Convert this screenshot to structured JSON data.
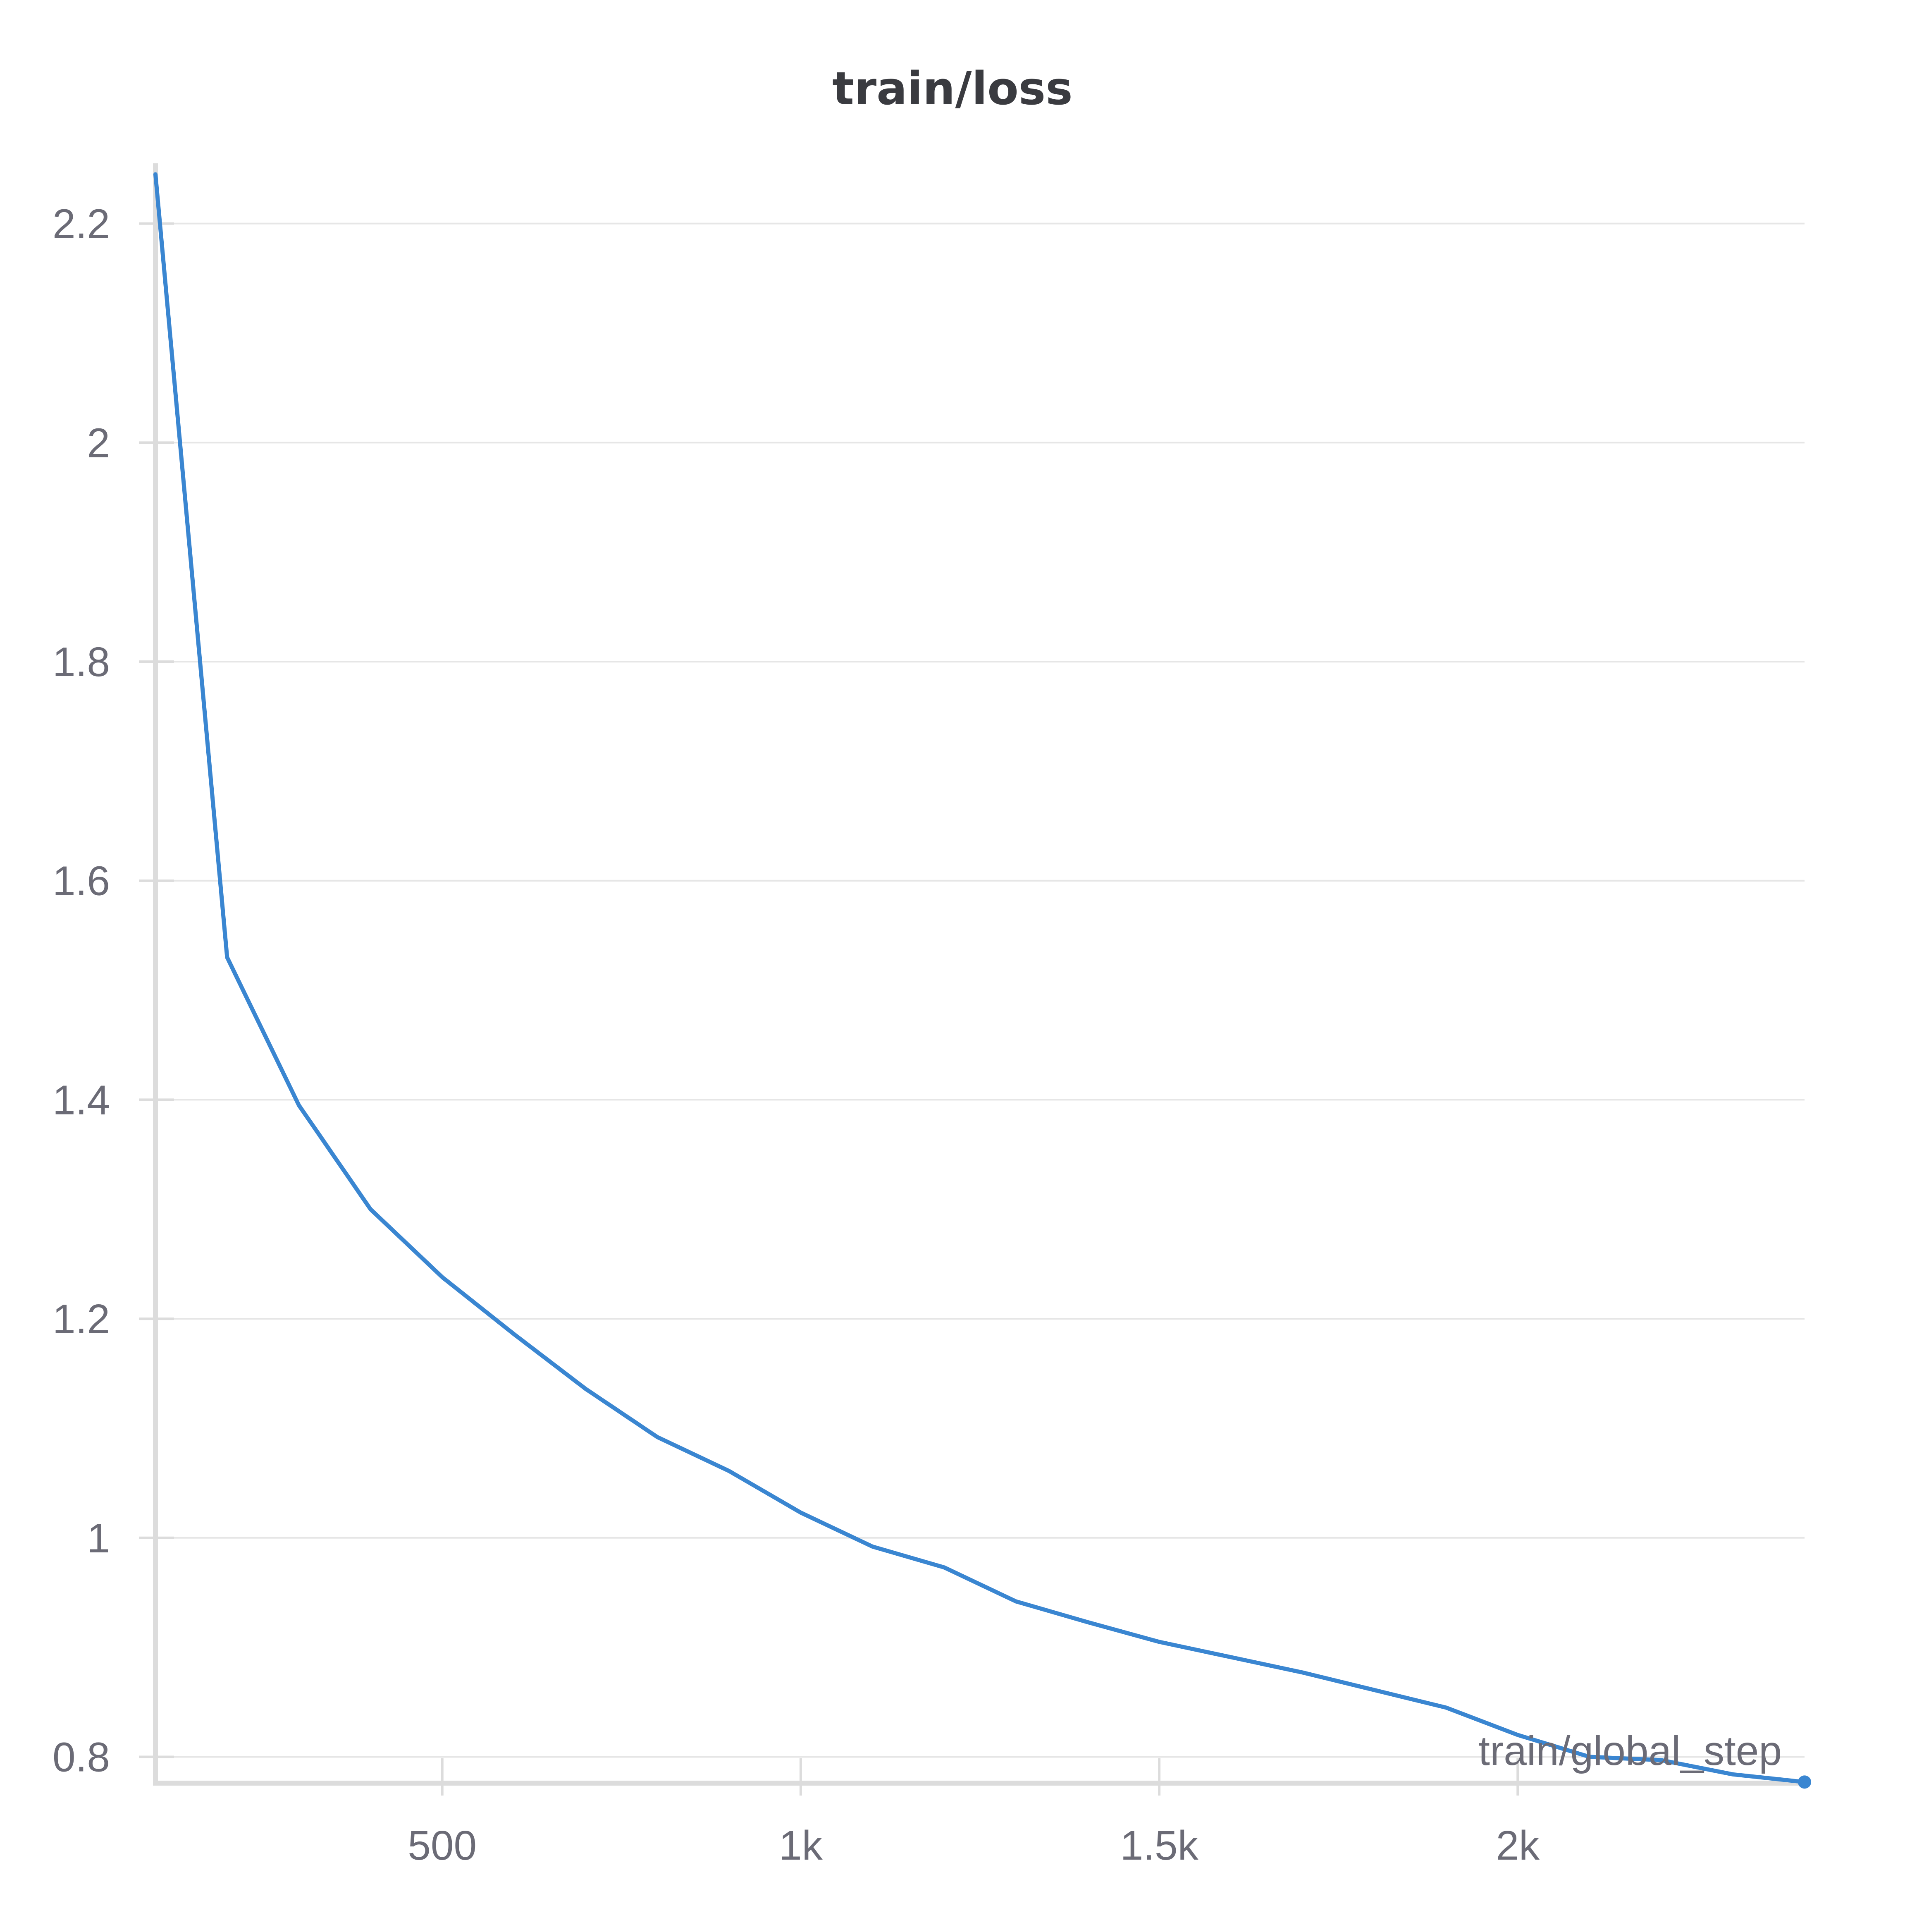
{
  "chart_data": {
    "type": "line",
    "title": "train/loss",
    "xlabel": "train/global_step",
    "ylabel": "",
    "xlim": [
      100,
      2400
    ],
    "ylim": [
      0.776,
      2.255
    ],
    "x_ticks": [
      {
        "value": 500,
        "label": "500"
      },
      {
        "value": 1000,
        "label": "1k"
      },
      {
        "value": 1500,
        "label": "1.5k"
      },
      {
        "value": 2000,
        "label": "2k"
      }
    ],
    "y_ticks": [
      {
        "value": 0.8,
        "label": "0.8"
      },
      {
        "value": 1.0,
        "label": "1"
      },
      {
        "value": 1.2,
        "label": "1.2"
      },
      {
        "value": 1.4,
        "label": "1.4"
      },
      {
        "value": 1.6,
        "label": "1.6"
      },
      {
        "value": 1.8,
        "label": "1.8"
      },
      {
        "value": 2.0,
        "label": "2"
      },
      {
        "value": 2.2,
        "label": "2.2"
      }
    ],
    "grid": true,
    "legend": "none",
    "series": [
      {
        "color": "#3a86d1",
        "x": [
          100,
          200,
          300,
          400,
          500,
          600,
          700,
          800,
          900,
          1000,
          1100,
          1200,
          1300,
          1400,
          1500,
          1600,
          1700,
          1800,
          1900,
          2000,
          2100,
          2200,
          2300,
          2400
        ],
        "y": [
          2.245,
          1.53,
          1.395,
          1.3,
          1.238,
          1.186,
          1.136,
          1.092,
          1.061,
          1.023,
          0.992,
          0.973,
          0.942,
          0.923,
          0.905,
          0.891,
          0.877,
          0.861,
          0.845,
          0.82,
          0.8,
          0.797,
          0.784,
          0.777
        ]
      }
    ]
  }
}
